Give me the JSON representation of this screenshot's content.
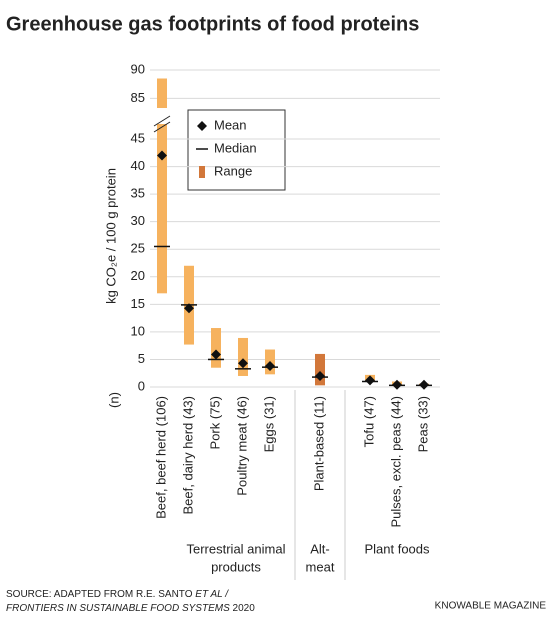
{
  "chart_data": {
    "type": "range",
    "title": "Greenhouse gas footprints of food proteins",
    "y_label": "kg CO₂e / 100 g protein",
    "n_label": "(n)",
    "categories": [
      "Beef, beef herd (106)",
      "Beef, dairy herd (43)",
      "Pork (75)",
      "Poultry meat (46)",
      "Eggs (31)",
      "Plant-based (11)",
      "Tofu (47)",
      "Pulses, excl. peas (44)",
      "Peas (33)"
    ],
    "groups": [
      {
        "label": [
          "Terrestrial animal",
          "products"
        ],
        "count": 5
      },
      {
        "label": [
          "Alt-",
          "meat"
        ],
        "count": 1
      },
      {
        "label": [
          "Plant foods"
        ],
        "count": 3
      }
    ],
    "series": [
      {
        "name": "Mean",
        "color": "#111111",
        "values": [
          42,
          14.3,
          5.9,
          4.3,
          3.8,
          2.0,
          1.2,
          0.4,
          0.4
        ]
      },
      {
        "name": "Median",
        "color": "#111111",
        "values": [
          25.5,
          14.9,
          5.0,
          3.3,
          3.6,
          1.8,
          1.0,
          0.3,
          0.3
        ]
      },
      {
        "name": "Range",
        "color": "#d2773a",
        "low": [
          17,
          7.7,
          3.5,
          2.0,
          2.3,
          0.3,
          1.0,
          0.2,
          0.2
        ],
        "high": [
          88.5,
          22,
          10.7,
          8.9,
          6.8,
          6.0,
          2.2,
          1.0,
          0.6
        ],
        "bar_colors": [
          "#f6b25e",
          "#f6b25e",
          "#f6b25e",
          "#f6b25e",
          "#f6b25e",
          "#d2773a",
          "#f6b25e",
          "#f6b25e",
          "#f6b25e"
        ]
      }
    ],
    "ylim": [
      0,
      90
    ],
    "ybreak": [
      47,
      84
    ],
    "yticks": [
      0,
      5,
      10,
      15,
      20,
      25,
      30,
      35,
      40,
      45,
      85,
      90
    ],
    "grid": true,
    "source": [
      [
        "SOURCE: ADAPTED FROM R.E. SANTO ",
        "ET AL /"
      ],
      [
        "FRONTIERS IN SUSTAINABLE FOOD SYSTEMS",
        " 2020"
      ]
    ],
    "credit": "KNOWABLE MAGAZINE"
  }
}
